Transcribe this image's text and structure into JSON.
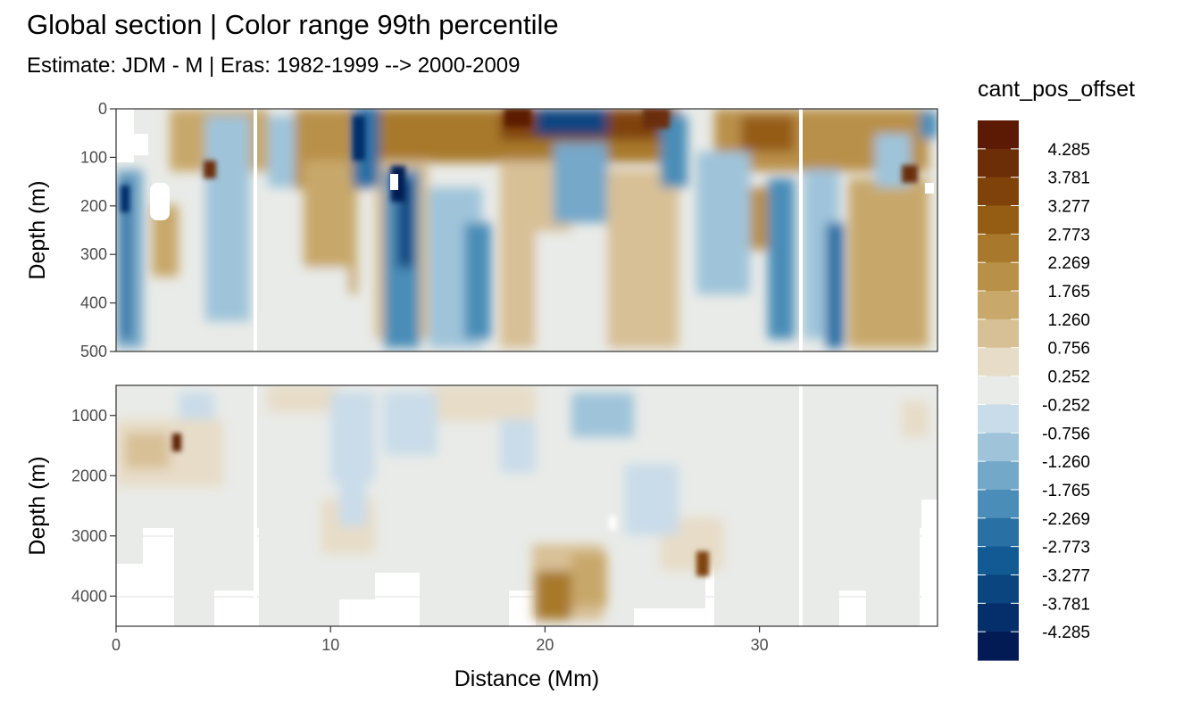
{
  "chart_data": {
    "type": "heatmap",
    "title": "Global section | Color range 99th percentile",
    "subtitle": "Estimate: JDM - M | Eras: 1982-1999 --> 2000-2009",
    "xlabel": "Distance (Mm)",
    "xlim": [
      0,
      38.3
    ],
    "x_ticks": [
      "0",
      "10",
      "20",
      "30"
    ],
    "x_tick_values": [
      0,
      10,
      20,
      30
    ],
    "panels": [
      {
        "name": "upper",
        "ylabel": "Depth (m)",
        "ylim": [
          500,
          0
        ],
        "y_ticks": [
          "0",
          "100",
          "200",
          "300",
          "400",
          "500"
        ],
        "y_tick_values": [
          0,
          100,
          200,
          300,
          400,
          500
        ]
      },
      {
        "name": "lower",
        "ylabel": "Depth (m)",
        "ylim": [
          4500,
          500
        ],
        "y_ticks": [
          "1000",
          "2000",
          "3000",
          "4000"
        ],
        "y_tick_values": [
          1000,
          2000,
          3000,
          4000
        ]
      }
    ],
    "legend": {
      "title": "cant_pos_offset",
      "position": "right",
      "labels": [
        "4.285",
        "3.781",
        "3.277",
        "2.773",
        "2.269",
        "1.765",
        "1.260",
        "0.756",
        "0.252",
        "-0.252",
        "-0.756",
        "-1.260",
        "-1.765",
        "-2.269",
        "-2.773",
        "-3.277",
        "-3.781",
        "-4.285"
      ],
      "colors": [
        "#5c1a05",
        "#6b2e07",
        "#7f430a",
        "#955c13",
        "#a8792c",
        "#b99048",
        "#c8a86b",
        "#d8c096",
        "#e7dcc7",
        "#e9ebe8",
        "#c9dce9",
        "#9fc4da",
        "#74a8c9",
        "#4a8db8",
        "#2970a5",
        "#125a93",
        "#0a4580",
        "#052f6a",
        "#021b55"
      ]
    },
    "grid": true
  }
}
